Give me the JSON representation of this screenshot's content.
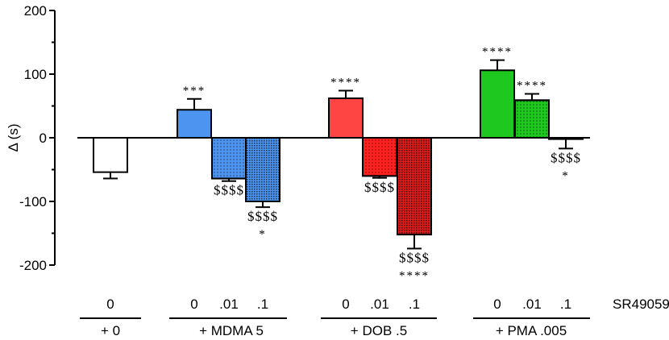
{
  "chart_data": {
    "type": "bar",
    "ylabel": "Δ (s)",
    "ylim": [
      -200,
      200
    ],
    "yticks": [
      -200,
      -100,
      0,
      100,
      200
    ],
    "grid": false,
    "bars": [
      {
        "group": "+ 0",
        "dose": "0",
        "value": -54,
        "err": 10,
        "color": "#ffffff",
        "pattern": "none",
        "annotation": [],
        "annotation_position": "below"
      },
      {
        "group": "+ MDMA 5",
        "dose": "0",
        "value": 44,
        "err": 17,
        "color": "#4d94f0",
        "pattern": "none",
        "annotation": [
          "***"
        ],
        "annotation_position": "above"
      },
      {
        "group": "+ MDMA 5",
        "dose": ".01",
        "value": -64,
        "err": 4,
        "color": "#4d94f0",
        "pattern": "light",
        "annotation": [
          "$$$$"
        ],
        "annotation_position": "below"
      },
      {
        "group": "+ MDMA 5",
        "dose": ".1",
        "value": -100,
        "err": 9,
        "color": "#4d94f0",
        "pattern": "dense",
        "annotation": [
          "$$$$",
          "*"
        ],
        "annotation_position": "below"
      },
      {
        "group": "+ DOB .5",
        "dose": "0",
        "value": 62,
        "err": 12,
        "color": "#ff4444",
        "pattern": "none",
        "annotation": [
          "****"
        ],
        "annotation_position": "above"
      },
      {
        "group": "+ DOB .5",
        "dose": ".01",
        "value": -60,
        "err": 3,
        "color": "#ff2020",
        "pattern": "light",
        "annotation": [
          "$$$$"
        ],
        "annotation_position": "below"
      },
      {
        "group": "+ DOB .5",
        "dose": ".1",
        "value": -152,
        "err": 22,
        "color": "#dd1c1c",
        "pattern": "dense",
        "annotation": [
          "$$$$",
          "****"
        ],
        "annotation_position": "below"
      },
      {
        "group": "+ PMA .005",
        "dose": "0",
        "value": 106,
        "err": 16,
        "color": "#1ec81e",
        "pattern": "none",
        "annotation": [
          "****"
        ],
        "annotation_position": "above"
      },
      {
        "group": "+ PMA .005",
        "dose": ".01",
        "value": 59,
        "err": 10,
        "color": "#1ec81e",
        "pattern": "light",
        "annotation": [
          "****"
        ],
        "annotation_position": "above"
      },
      {
        "group": "+ PMA .005",
        "dose": ".1",
        "value": -2,
        "err": 15,
        "color": "#1ec81e",
        "pattern": "dense",
        "annotation": [
          "$$$$",
          "*"
        ],
        "annotation_position": "below"
      }
    ],
    "row_label": "SR49059",
    "group_labels": [
      "+ 0",
      "+ MDMA 5",
      "+ DOB .5",
      "+ PMA .005"
    ]
  }
}
